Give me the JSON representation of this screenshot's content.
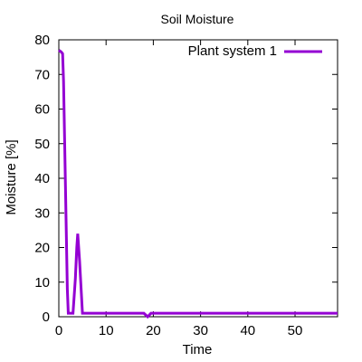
{
  "chart_data": {
    "type": "line",
    "title": "Soil Moisture",
    "xlabel": "Time",
    "ylabel": "Moisture [%]",
    "xlim": [
      0,
      59
    ],
    "ylim": [
      0,
      80
    ],
    "xticks": [
      0,
      10,
      20,
      30,
      40,
      50
    ],
    "yticks": [
      0,
      10,
      20,
      30,
      40,
      50,
      60,
      70,
      80
    ],
    "grid": false,
    "legend_position": "top-right",
    "series": [
      {
        "name": "Plant system 1",
        "color": "#9400d3",
        "x": [
          0,
          0.5,
          0.8,
          1.0,
          1.2,
          1.4,
          1.6,
          1.8,
          2.0,
          3.0,
          3.5,
          3.8,
          4.0,
          4.2,
          4.4,
          4.6,
          4.8,
          5.0,
          10,
          18.0,
          18.8,
          19.5,
          20,
          30,
          40,
          50,
          59
        ],
        "y": [
          77,
          76.5,
          76,
          68,
          53,
          38,
          23,
          8,
          1,
          1,
          11,
          20,
          24,
          20,
          16,
          11,
          6,
          1,
          1,
          1,
          0,
          1,
          1,
          1,
          1,
          1,
          1
        ]
      }
    ]
  }
}
